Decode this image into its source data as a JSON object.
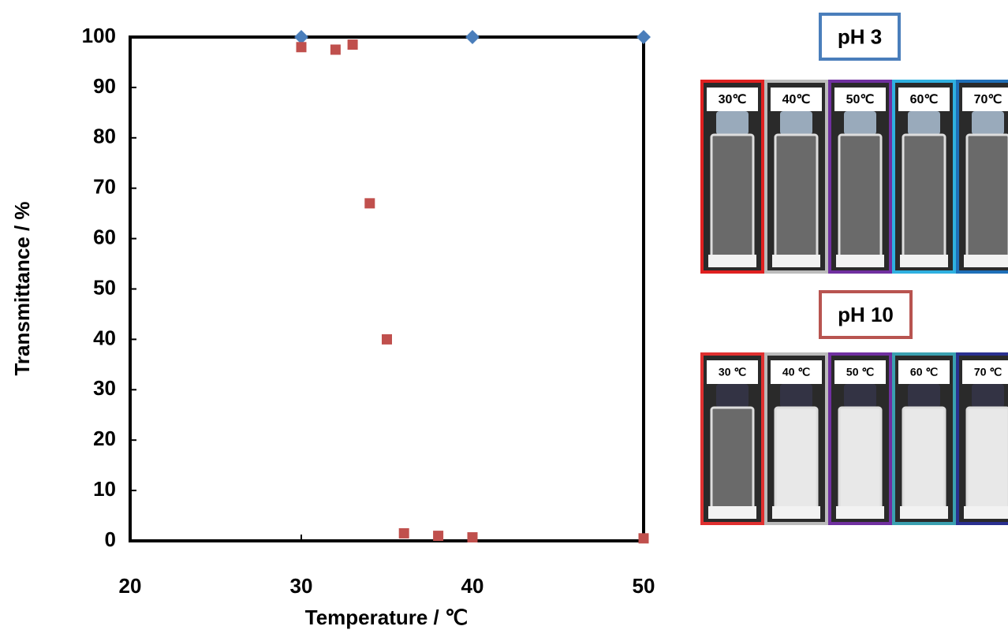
{
  "chart_data": {
    "type": "scatter",
    "xlabel": "Temperature / ℃",
    "ylabel": "Transmittance / %",
    "xlim": [
      20,
      50
    ],
    "ylim": [
      0,
      100
    ],
    "xticks": [
      20,
      30,
      40,
      50
    ],
    "yticks": [
      0,
      10,
      20,
      30,
      40,
      50,
      60,
      70,
      80,
      90,
      100
    ],
    "series": [
      {
        "color": "#4a7ebb",
        "marker": "diamond",
        "x": [
          30,
          40,
          50
        ],
        "values": [
          100,
          100,
          100
        ]
      },
      {
        "color": "#c0504d",
        "marker": "square",
        "x": [
          30,
          32,
          33,
          34,
          35,
          36,
          38,
          40,
          50
        ],
        "values": [
          98,
          97.5,
          98.5,
          67,
          40,
          1.5,
          1,
          0.7,
          0.5
        ]
      }
    ]
  },
  "panels": [
    {
      "title": "pH 3",
      "color": "#4a7ebb",
      "cloudy": [
        false,
        false,
        false,
        false,
        false
      ],
      "labels": [
        "30℃",
        "40℃",
        "50℃",
        "60℃",
        "70℃"
      ],
      "frame_colors": [
        "#e02020",
        "#bbbbbb",
        "#7030a0",
        "#2fb0e0",
        "#1f6fb8"
      ]
    },
    {
      "title": "pH 10",
      "color": "#b85450",
      "cloudy": [
        false,
        true,
        true,
        true,
        true
      ],
      "labels": [
        "30 ℃",
        "40 ℃",
        "50 ℃",
        "60 ℃",
        "70 ℃"
      ],
      "frame_colors": [
        "#e03030",
        "#bbbbbb",
        "#7030a0",
        "#3aa0b0",
        "#2a3090"
      ]
    }
  ]
}
